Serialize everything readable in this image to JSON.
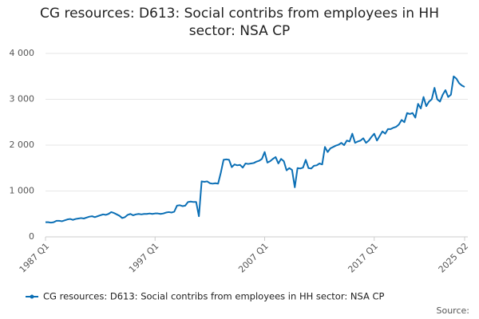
{
  "chart_data": {
    "type": "line",
    "title": "CG resources: D613: Social contribs from employees in HH sector: NSA CP",
    "source_label": "Source:",
    "categories": [
      "1987 Q1",
      null,
      null,
      null,
      null,
      null,
      null,
      null,
      null,
      null,
      null,
      null,
      null,
      null,
      null,
      null,
      null,
      null,
      null,
      null,
      null,
      null,
      null,
      null,
      null,
      null,
      null,
      null,
      null,
      null,
      null,
      null,
      null,
      null,
      null,
      null,
      null,
      null,
      null,
      null,
      "1997 Q1",
      null,
      null,
      null,
      null,
      null,
      null,
      null,
      null,
      null,
      null,
      null,
      null,
      null,
      null,
      null,
      null,
      null,
      null,
      null,
      null,
      null,
      null,
      null,
      null,
      null,
      null,
      null,
      null,
      null,
      null,
      null,
      null,
      null,
      null,
      null,
      null,
      null,
      null,
      null,
      "2007 Q1",
      null,
      null,
      null,
      null,
      null,
      null,
      null,
      null,
      null,
      null,
      null,
      null,
      null,
      null,
      null,
      null,
      null,
      null,
      null,
      null,
      null,
      null,
      null,
      null,
      null,
      null,
      null,
      null,
      null,
      null,
      null,
      null,
      null,
      null,
      null,
      null,
      null,
      null,
      null,
      "2017 Q1",
      null,
      null,
      null,
      null,
      null,
      null,
      null,
      null,
      null,
      null,
      null,
      null,
      null,
      null,
      null,
      null,
      null,
      null,
      null,
      null,
      null,
      null,
      null,
      null,
      null,
      null,
      null,
      null,
      null,
      null,
      null,
      null,
      "2025 Q2"
    ],
    "series": [
      {
        "name": "CG resources: D613: Social contribs from employees in HH sector: NSA CP",
        "color": "#0b6fb5",
        "values": [
          320,
          320,
          310,
          320,
          350,
          350,
          340,
          360,
          380,
          390,
          370,
          390,
          400,
          410,
          400,
          420,
          440,
          450,
          430,
          450,
          470,
          490,
          480,
          500,
          540,
          520,
          490,
          460,
          410,
          430,
          480,
          500,
          470,
          490,
          500,
          490,
          500,
          500,
          510,
          500,
          510,
          510,
          500,
          510,
          530,
          540,
          530,
          550,
          680,
          690,
          670,
          680,
          760,
          770,
          760,
          760,
          450,
          1210,
          1200,
          1210,
          1170,
          1160,
          1170,
          1160,
          1400,
          1680,
          1690,
          1680,
          1520,
          1580,
          1560,
          1570,
          1510,
          1600,
          1590,
          1600,
          1610,
          1640,
          1660,
          1700,
          1850,
          1620,
          1650,
          1700,
          1740,
          1600,
          1700,
          1650,
          1450,
          1500,
          1460,
          1080,
          1500,
          1490,
          1510,
          1680,
          1500,
          1490,
          1550,
          1560,
          1600,
          1580,
          1960,
          1850,
          1930,
          1960,
          1990,
          2010,
          2050,
          2000,
          2100,
          2080,
          2250,
          2050,
          2080,
          2100,
          2150,
          2050,
          2100,
          2180,
          2250,
          2100,
          2200,
          2300,
          2250,
          2350,
          2350,
          2380,
          2400,
          2450,
          2550,
          2500,
          2700,
          2680,
          2700,
          2600,
          2900,
          2800,
          3050,
          2850,
          2950,
          3000,
          3250,
          3000,
          2950,
          3100,
          3200,
          3050,
          3100,
          3500,
          3450,
          3350,
          3300,
          3270
        ]
      }
    ],
    "ylim": [
      0,
      4000
    ],
    "yticks": [
      0,
      {
        "value": 1000,
        "label": "1 000"
      },
      {
        "value": 2000,
        "label": "2 000"
      },
      {
        "value": 3000,
        "label": "3 000"
      },
      {
        "value": 4000,
        "label": "4 000"
      }
    ],
    "grid": true
  }
}
